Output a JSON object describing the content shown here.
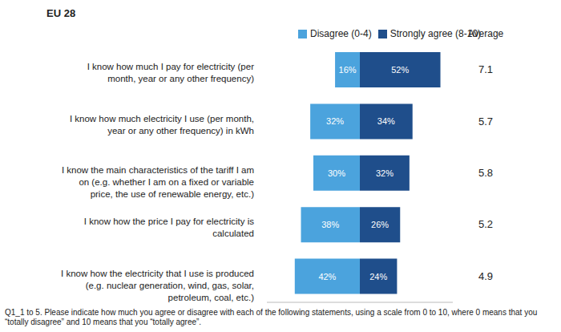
{
  "chart_data": {
    "type": "bar",
    "orientation": "horizontal",
    "title": "EU 28",
    "categories": [
      "I know how much I pay for electricity (per month, year or any other frequency)",
      "I know how much electricity I use (per month, year or any other frequency)  in kWh",
      "I know the main characteristics of the tariff I am on (e.g. whether I am on a fixed or variable price, the use of renewable energy, etc.)",
      "I know how the price I pay for electricity is calculated",
      "I know how the electricity that I use is produced (e.g. nuclear generation, wind, gas, solar, petroleum, coal, etc.)"
    ],
    "series": [
      {
        "name": "Disagree (0-4)",
        "color": "#4ba3dd",
        "values": [
          16,
          32,
          30,
          38,
          42
        ],
        "value_labels": [
          "16%",
          "32%",
          "30%",
          "38%",
          "42%"
        ]
      },
      {
        "name": "Strongly agree (8-10)",
        "color": "#1f4e8b",
        "values": [
          52,
          34,
          32,
          26,
          24
        ],
        "value_labels": [
          "52%",
          "34%",
          "32%",
          "26%",
          "24%"
        ]
      }
    ],
    "averages": {
      "label": "Average",
      "values": [
        7.1,
        5.7,
        5.8,
        5.2,
        4.9
      ]
    },
    "xlim": [
      0,
      60
    ],
    "data_labels": true,
    "tick_labels": "y",
    "legend": "top",
    "footnote": "Q1_1 to 5. Please indicate how much you agree or disagree with each of the following statements, using a scale from 0 to 10, where 0 means that you “totally disagree” and 10 means that you “totally agree”."
  }
}
